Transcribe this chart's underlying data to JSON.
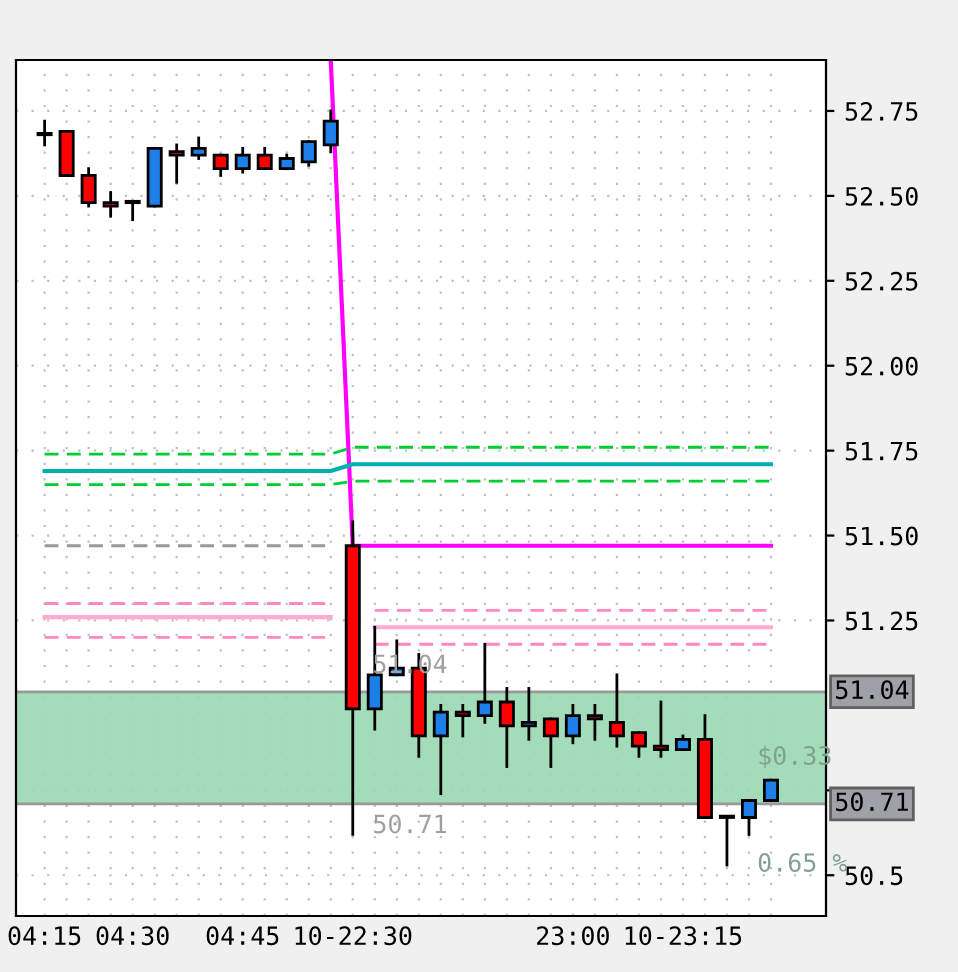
{
  "chart_data": {
    "type": "candlestick",
    "categories": [
      "04:15",
      null,
      null,
      null,
      "04:30",
      null,
      null,
      null,
      null,
      "04:45",
      null,
      null,
      null,
      null,
      "10-22:30",
      null,
      null,
      null,
      null,
      null,
      null,
      null,
      null,
      null,
      "23:00",
      null,
      null,
      null,
      null,
      "10-23:15",
      null,
      null,
      null,
      null
    ],
    "ohlc": [
      [
        52.68,
        52.72,
        52.65,
        52.68
      ],
      [
        52.69,
        52.69,
        52.56,
        52.56
      ],
      [
        52.56,
        52.58,
        52.47,
        52.48
      ],
      [
        52.48,
        52.51,
        52.44,
        52.47
      ],
      [
        52.48,
        52.48,
        52.43,
        52.48
      ],
      [
        52.47,
        52.64,
        52.47,
        52.64
      ],
      [
        52.63,
        52.65,
        52.54,
        52.62
      ],
      [
        52.62,
        52.67,
        52.61,
        52.64
      ],
      [
        52.62,
        52.62,
        52.56,
        52.58
      ],
      [
        52.58,
        52.64,
        52.57,
        52.62
      ],
      [
        52.62,
        52.64,
        52.58,
        52.58
      ],
      [
        52.58,
        52.62,
        52.58,
        52.61
      ],
      [
        52.6,
        52.66,
        52.59,
        52.66
      ],
      [
        52.65,
        52.75,
        52.63,
        52.72
      ],
      [
        51.47,
        51.54,
        50.62,
        50.99
      ],
      [
        50.99,
        51.23,
        50.93,
        51.09
      ],
      [
        51.09,
        51.19,
        51.09,
        51.11
      ],
      [
        51.11,
        51.15,
        50.85,
        50.91
      ],
      [
        50.91,
        51.0,
        50.74,
        50.98
      ],
      [
        50.98,
        51.0,
        50.91,
        50.97
      ],
      [
        50.97,
        51.18,
        50.95,
        51.01
      ],
      [
        51.01,
        51.05,
        50.82,
        50.94
      ],
      [
        50.94,
        51.05,
        50.9,
        50.95
      ],
      [
        50.96,
        50.96,
        50.82,
        50.91
      ],
      [
        50.91,
        51.0,
        50.89,
        50.97
      ],
      [
        50.97,
        51.0,
        50.9,
        50.96
      ],
      [
        50.95,
        51.09,
        50.88,
        50.91
      ],
      [
        50.92,
        50.92,
        50.85,
        50.88
      ],
      [
        50.88,
        51.01,
        50.85,
        50.87
      ],
      [
        50.87,
        50.91,
        50.87,
        50.9
      ],
      [
        50.9,
        50.97,
        50.67,
        50.67
      ],
      [
        50.67,
        50.67,
        50.53,
        50.67
      ],
      [
        50.67,
        50.72,
        50.62,
        50.72
      ],
      [
        50.72,
        50.78,
        50.72,
        50.78
      ]
    ],
    "colors": [
      "#1e7fe8",
      "#ff0000",
      "#ff0000",
      "#ff0000",
      "#000000",
      "#1e7fe8",
      "#ff0000",
      "#1e7fe8",
      "#ff0000",
      "#1e7fe8",
      "#ff0000",
      "#1e7fe8",
      "#1e7fe8",
      "#1e7fe8",
      "#ff0000",
      "#1e7fe8",
      "#1e7fe8",
      "#ff0000",
      "#1e7fe8",
      "#ff0000",
      "#1e7fe8",
      "#ff0000",
      "#1e7fe8",
      "#ff0000",
      "#1e7fe8",
      "#ff0000",
      "#ff0000",
      "#ff0000",
      "#ff0000",
      "#1e7fe8",
      "#ff0000",
      "#000000",
      "#1e7fe8",
      "#1e7fe8"
    ],
    "series": [
      {
        "type": "line",
        "color": "#ff00ff",
        "line_style": "solid",
        "values": [
          null,
          null,
          null,
          null,
          null,
          null,
          null,
          null,
          null,
          null,
          null,
          null,
          null,
          52.9,
          51.47,
          51.47,
          51.47,
          51.47,
          51.47,
          51.47,
          51.47,
          51.47,
          51.47,
          51.47,
          51.47,
          51.47,
          51.47,
          51.47,
          51.47,
          51.47,
          51.47,
          51.47,
          51.47,
          51.47
        ]
      },
      {
        "type": "line",
        "color": "#00b0b0",
        "line_style": "solid",
        "values": [
          51.69,
          51.69,
          51.69,
          51.69,
          51.69,
          51.69,
          51.69,
          51.69,
          51.69,
          51.69,
          51.69,
          51.69,
          51.69,
          51.69,
          51.71,
          51.71,
          51.71,
          51.71,
          51.71,
          51.71,
          51.71,
          51.71,
          51.71,
          51.71,
          51.71,
          51.71,
          51.71,
          51.71,
          51.71,
          51.71,
          51.71,
          51.71,
          51.71,
          51.71
        ]
      },
      {
        "type": "line",
        "color": "#00cc33",
        "line_style": "dashed",
        "values": [
          51.74,
          51.74,
          51.74,
          51.74,
          51.74,
          51.74,
          51.74,
          51.74,
          51.74,
          51.74,
          51.74,
          51.74,
          51.74,
          51.74,
          51.76,
          51.76,
          51.76,
          51.76,
          51.76,
          51.76,
          51.76,
          51.76,
          51.76,
          51.76,
          51.76,
          51.76,
          51.76,
          51.76,
          51.76,
          51.76,
          51.76,
          51.76,
          51.76,
          51.76
        ]
      },
      {
        "type": "line",
        "color": "#00cc33",
        "line_style": "dashed",
        "values": [
          51.65,
          51.65,
          51.65,
          51.65,
          51.65,
          51.65,
          51.65,
          51.65,
          51.65,
          51.65,
          51.65,
          51.65,
          51.65,
          51.65,
          51.66,
          51.66,
          51.66,
          51.66,
          51.66,
          51.66,
          51.66,
          51.66,
          51.66,
          51.66,
          51.66,
          51.66,
          51.66,
          51.66,
          51.66,
          51.66,
          51.66,
          51.66,
          51.66,
          51.66
        ]
      },
      {
        "type": "line",
        "color": "#999999",
        "line_style": "dashed",
        "values": [
          51.47,
          51.47,
          51.47,
          51.47,
          51.47,
          51.47,
          51.47,
          51.47,
          51.47,
          51.47,
          51.47,
          51.47,
          51.47,
          51.47,
          null,
          null,
          null,
          null,
          null,
          null,
          null,
          null,
          null,
          null,
          null,
          null,
          null,
          null,
          null,
          null,
          null,
          null,
          null,
          null
        ]
      },
      {
        "type": "line",
        "color": "#ff88c0",
        "line_style": "dashed",
        "values": [
          51.3,
          51.3,
          51.3,
          51.3,
          51.3,
          51.3,
          51.3,
          51.3,
          51.3,
          51.3,
          51.3,
          51.3,
          51.3,
          51.3,
          null,
          51.28,
          51.28,
          51.28,
          51.28,
          51.28,
          51.28,
          51.28,
          51.28,
          51.28,
          51.28,
          51.28,
          51.28,
          51.28,
          51.28,
          51.28,
          51.28,
          51.28,
          51.28,
          51.28
        ]
      },
      {
        "type": "line",
        "color": "#ff88c0",
        "line_style": "dashed",
        "values": [
          51.2,
          51.2,
          51.2,
          51.2,
          51.2,
          51.2,
          51.2,
          51.2,
          51.2,
          51.2,
          51.2,
          51.2,
          51.2,
          51.2,
          null,
          51.18,
          51.18,
          51.18,
          51.18,
          51.18,
          51.18,
          51.18,
          51.18,
          51.18,
          51.18,
          51.18,
          51.18,
          51.18,
          51.18,
          51.18,
          51.18,
          51.18,
          51.18,
          51.18
        ]
      },
      {
        "type": "line",
        "color": "#ffaad0",
        "line_style": "solid",
        "values": [
          51.26,
          51.26,
          51.26,
          51.26,
          51.26,
          51.26,
          51.26,
          51.26,
          51.26,
          51.26,
          51.26,
          51.26,
          51.26,
          51.26,
          null,
          51.23,
          51.23,
          51.23,
          51.23,
          51.23,
          51.23,
          51.23,
          51.23,
          51.23,
          51.23,
          51.23,
          51.23,
          51.23,
          51.23,
          51.23,
          51.23,
          51.23,
          51.23,
          51.23
        ]
      }
    ],
    "bands": [
      {
        "axis": "y",
        "from": 50.71,
        "to": 51.04,
        "color": "#99d8b0"
      }
    ],
    "ref_lines": [
      {
        "axis": "y",
        "value": 51.04,
        "label": "51.04",
        "color": "#999999"
      },
      {
        "axis": "y",
        "value": 50.71,
        "label": "50.71",
        "color": "#999999"
      }
    ],
    "annotations": [
      "51.04",
      "50.71",
      "$0.33",
      "0.65 %"
    ],
    "ylim": [
      50.38,
      52.9
    ],
    "yticks": [
      50.5,
      {
        "value": 50.75,
        "label": null
      },
      51.25,
      {
        "value": 51.5,
        "label": "51.50"
      },
      51.75,
      {
        "value": 52.0,
        "label": "52.00"
      },
      52.25,
      {
        "value": 52.5,
        "label": "52.50"
      },
      52.75
    ],
    "grid": true
  }
}
